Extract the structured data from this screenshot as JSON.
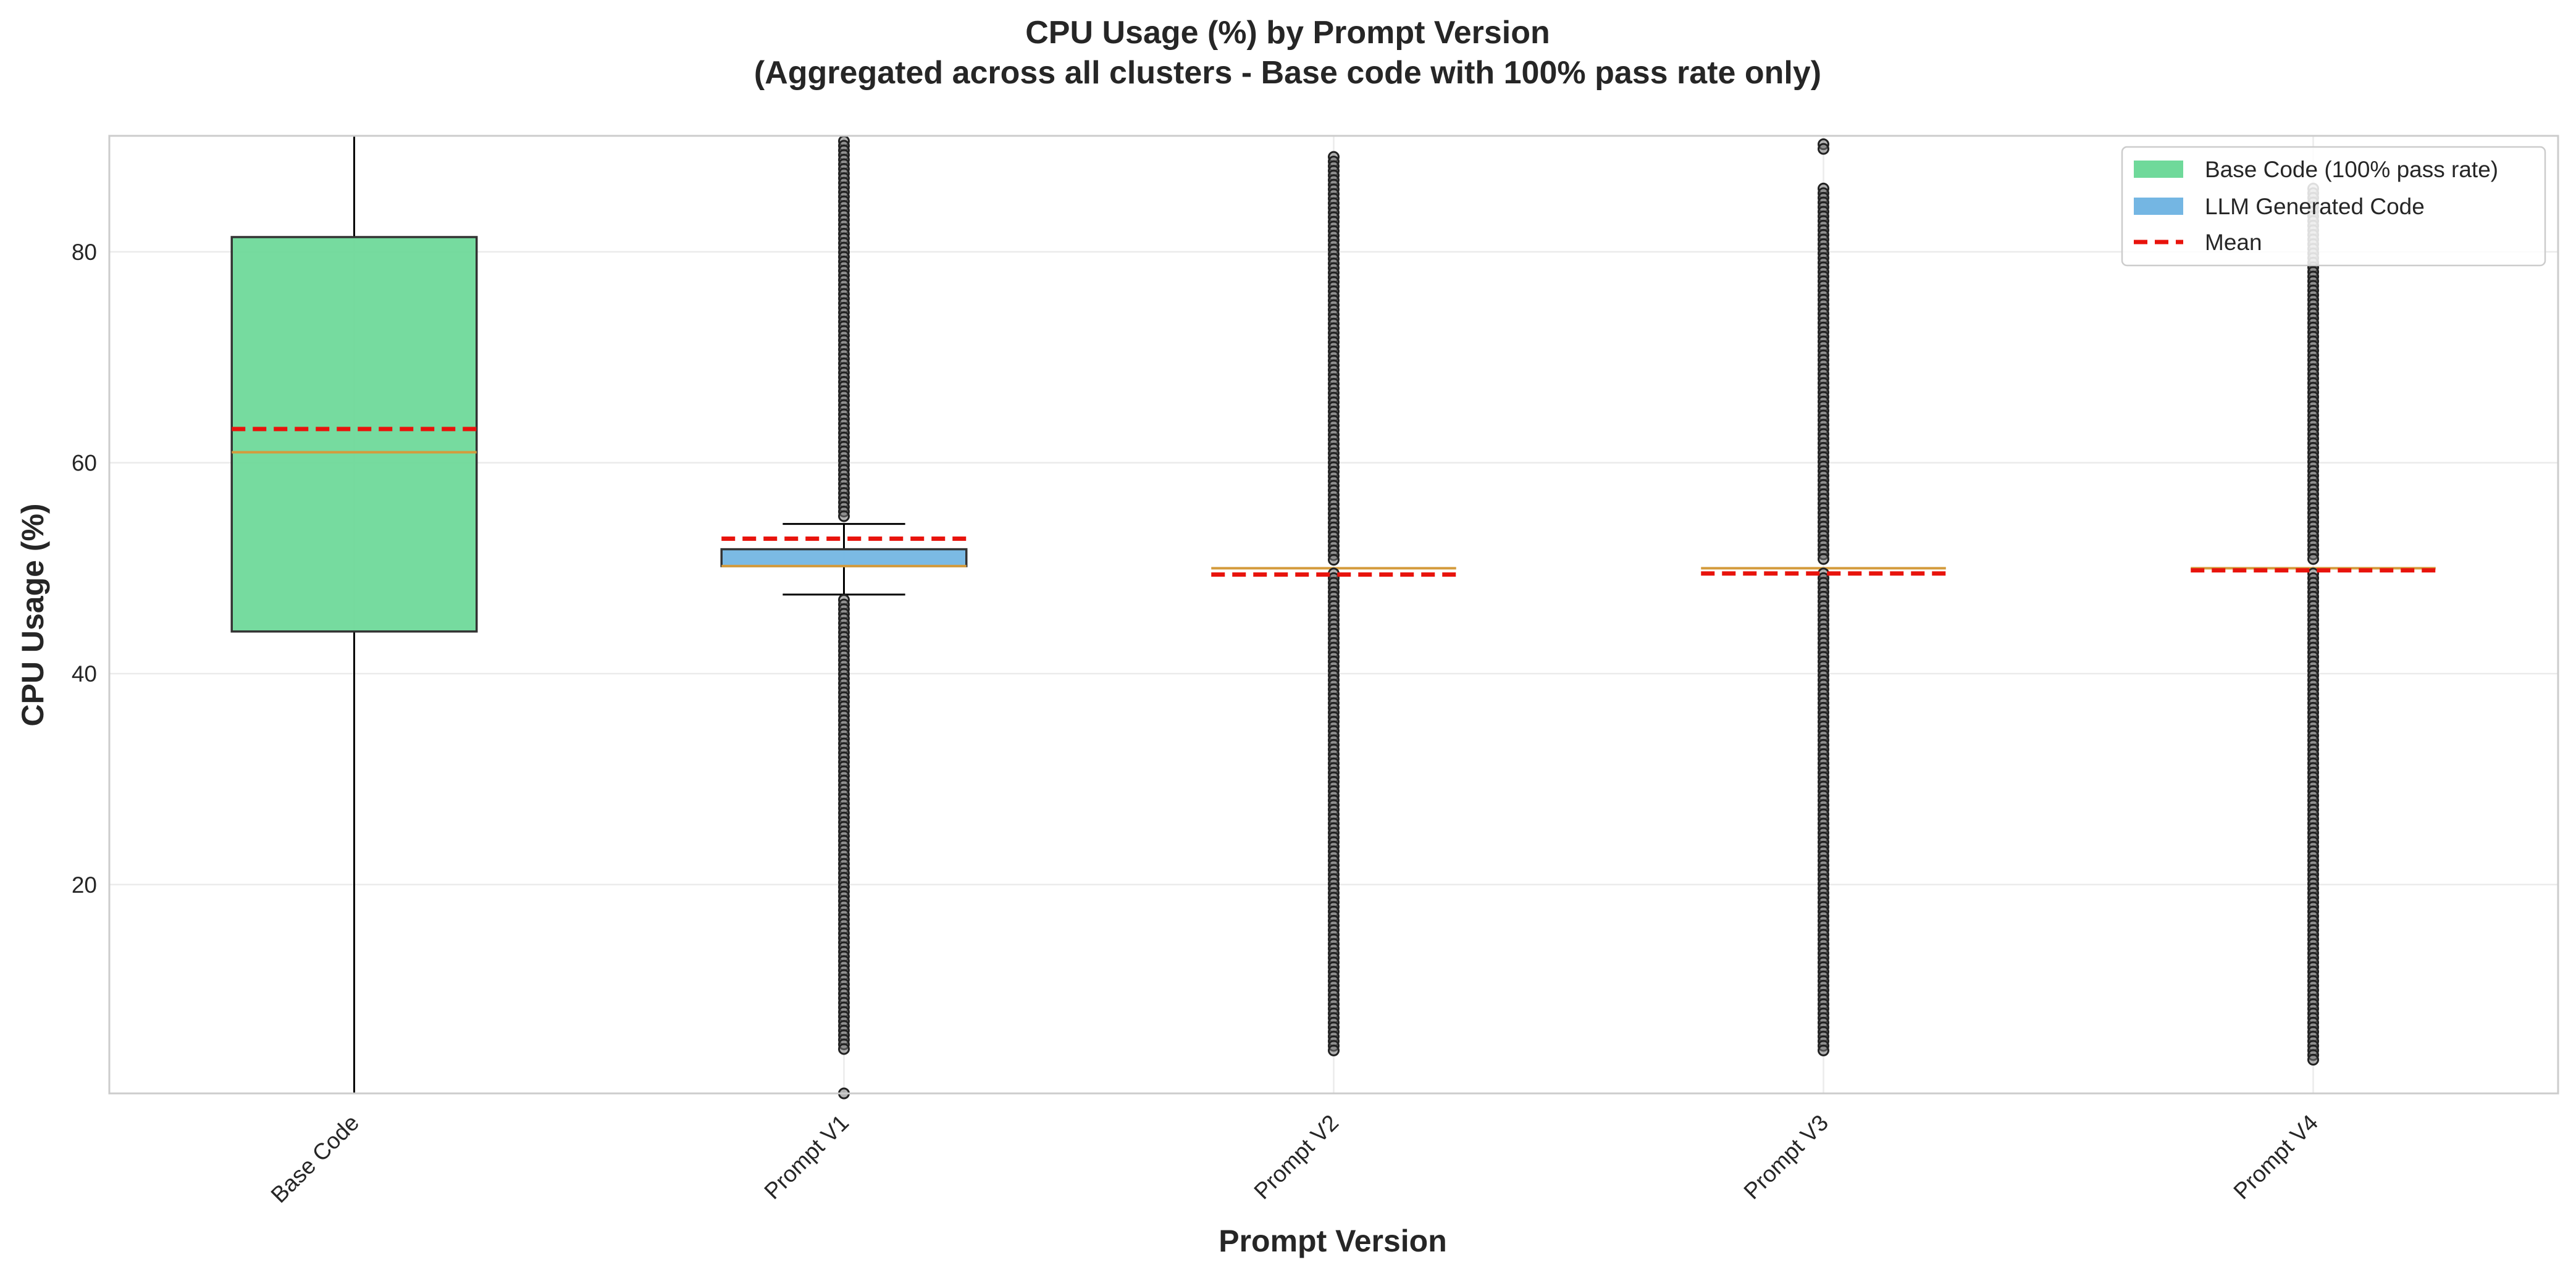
{
  "chart_data": {
    "type": "boxplot",
    "title": "CPU Usage (%) by Prompt Version",
    "subtitle": "(Aggregated across all clusters - Base code with 100% pass rate only)",
    "xlabel": "Prompt Version",
    "ylabel": "CPU Usage (%)",
    "ylim": [
      0.2,
      91
    ],
    "yticks": [
      20,
      40,
      60,
      80
    ],
    "grid": true,
    "legend_position": "top-right",
    "legend": [
      {
        "label": "Base Code (100% pass rate)",
        "kind": "patch",
        "color": "#6fd99a"
      },
      {
        "label": "LLM Generated Code",
        "kind": "patch",
        "color": "#74b6e3"
      },
      {
        "label": "Mean",
        "kind": "dashed-line",
        "color": "#e8130c"
      }
    ],
    "colors": {
      "base": "#6fd99a",
      "llm": "#74b6e3",
      "mean": "#e8130c",
      "median": "#d49b3c",
      "outlier": "#555555"
    },
    "categories": [
      "Base Code",
      "Prompt V1",
      "Prompt V2",
      "Prompt V3",
      "Prompt V4"
    ],
    "series": [
      {
        "name": "Base Code",
        "group": "base",
        "q1": 44.0,
        "median": 61.0,
        "q3": 81.4,
        "whisker_low": 0.2,
        "whisker_high": 91.0,
        "mean": 63.2,
        "outliers": {
          "bands": []
        }
      },
      {
        "name": "Prompt V1",
        "group": "llm",
        "q1": 50.2,
        "median": 50.2,
        "q3": 51.8,
        "whisker_low": 47.5,
        "whisker_high": 54.2,
        "mean": 52.8,
        "outliers": {
          "bands": [
            [
              0.2,
              0.2
            ],
            [
              4.0,
              47.0
            ],
            [
              54.8,
              90.5
            ]
          ]
        }
      },
      {
        "name": "Prompt V2",
        "group": "llm",
        "q1": 50.0,
        "median": 50.0,
        "q3": 50.0,
        "whisker_low": 50.0,
        "whisker_high": 50.0,
        "mean": 49.4,
        "outliers": {
          "bands": [
            [
              4.0,
              49.5
            ],
            [
              50.5,
              89.0
            ]
          ]
        }
      },
      {
        "name": "Prompt V3",
        "group": "llm",
        "q1": 50.0,
        "median": 50.0,
        "q3": 50.0,
        "whisker_low": 50.0,
        "whisker_high": 50.0,
        "mean": 49.5,
        "outliers": {
          "bands": [
            [
              4.0,
              49.5
            ],
            [
              50.5,
              86.0
            ],
            [
              89.5,
              90.2
            ]
          ]
        }
      },
      {
        "name": "Prompt V4",
        "group": "llm",
        "q1": 50.0,
        "median": 50.0,
        "q3": 50.0,
        "whisker_low": 50.0,
        "whisker_high": 50.0,
        "mean": 49.8,
        "outliers": {
          "bands": [
            [
              3.0,
              49.5
            ],
            [
              50.5,
              86.0
            ]
          ]
        }
      }
    ]
  }
}
